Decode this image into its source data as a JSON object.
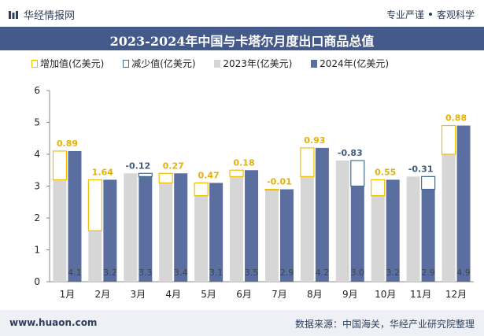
{
  "header": {
    "brand": "华经情报网",
    "tagline_left": "专业严谨",
    "tagline_right": "客观科学"
  },
  "footer": {
    "url": "www.huaon.com",
    "source": "数据来源：中国海关，华经产业研究院整理"
  },
  "colors": {
    "increase": "#f0c000",
    "decrease": "#4a6b8a",
    "y2023": "#d6d6d6",
    "y2024": "#5a6ea0",
    "title_bg": "#445a8a",
    "increase_label": "#e8b000",
    "decrease_label": "#3d5a80"
  },
  "chart_data": {
    "type": "bar",
    "title": "2023-2024年中国与卡塔尔月度出口商品总值",
    "categories": [
      "1月",
      "2月",
      "3月",
      "4月",
      "5月",
      "6月",
      "7月",
      "8月",
      "9月",
      "10月",
      "11月",
      "12月"
    ],
    "series": [
      {
        "name": "2023年(亿美元)",
        "values": [
          3.2,
          1.6,
          3.4,
          3.1,
          2.7,
          3.3,
          2.9,
          3.3,
          3.8,
          2.7,
          3.3,
          4.0
        ]
      },
      {
        "name": "2024年(亿美元)",
        "values": [
          4.1,
          3.2,
          3.3,
          3.4,
          3.1,
          3.5,
          2.9,
          4.2,
          3.0,
          3.2,
          2.9,
          4.9
        ]
      }
    ],
    "change_legend": {
      "increase": "增加值(亿美元)",
      "decrease": "减少值(亿美元)"
    },
    "change_labels": [
      "0.89",
      "1.64",
      "-0.12",
      "0.27",
      "0.47",
      "0.18",
      "-0.01",
      "0.93",
      "-0.83",
      "0.55",
      "-0.31",
      "0.88"
    ],
    "value_labels": [
      "4.1",
      "3.2",
      "3.3",
      "3.4",
      "3.1",
      "3.5",
      "2.9",
      "4.2",
      "3.0",
      "3.2",
      "2.9",
      "4.9"
    ],
    "ylim": [
      0,
      6
    ],
    "yticks": [
      0,
      1,
      2,
      3,
      4,
      5,
      6
    ],
    "xlabel": "",
    "ylabel": "",
    "grid": false,
    "legend_position": "top"
  }
}
